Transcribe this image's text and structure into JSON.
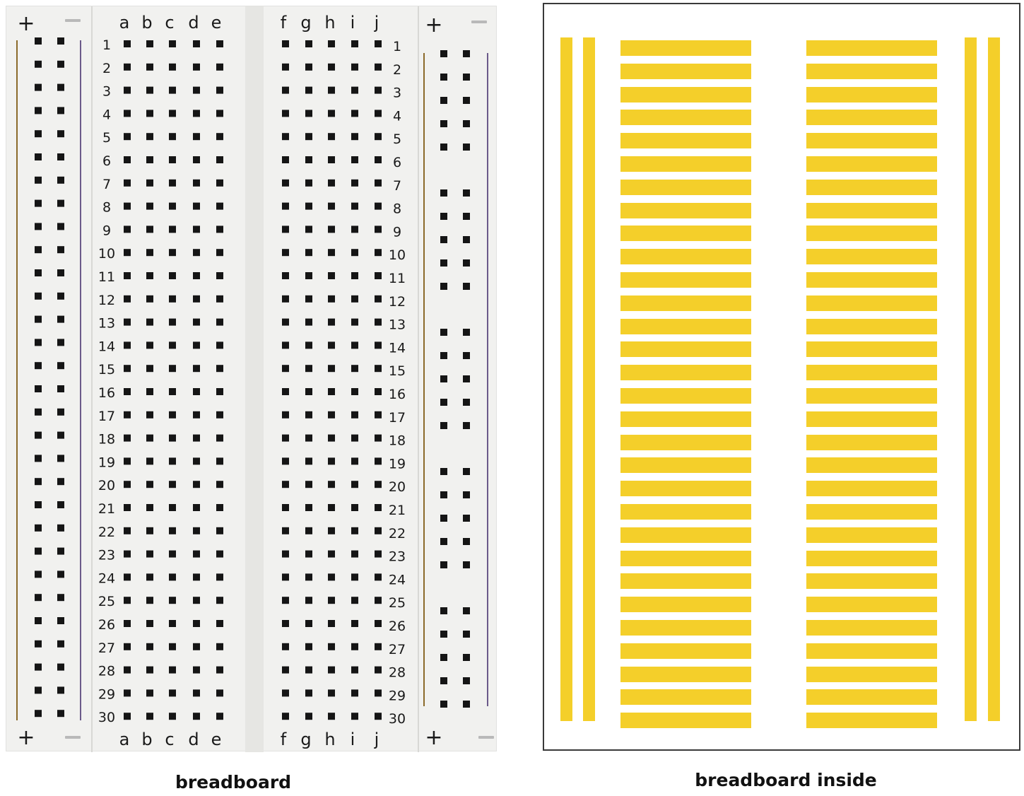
{
  "captions": {
    "breadboard": "breadboard",
    "inside": "breadboard inside"
  },
  "breadboard": {
    "column_labels_left": [
      "a",
      "b",
      "c",
      "d",
      "e"
    ],
    "column_labels_right": [
      "f",
      "g",
      "h",
      "i",
      "j"
    ],
    "row_numbers": [
      "1",
      "2",
      "3",
      "4",
      "5",
      "6",
      "7",
      "8",
      "9",
      "10",
      "11",
      "12",
      "13",
      "14",
      "15",
      "16",
      "17",
      "18",
      "19",
      "20",
      "21",
      "22",
      "23",
      "24",
      "25",
      "26",
      "27",
      "28",
      "29",
      "30"
    ],
    "plus_symbol": "+",
    "minus_symbol": "—"
  },
  "inside": {
    "row_strip_count_per_side": 30,
    "power_rails_per_side": 2
  },
  "colors": {
    "board": "#f1f1ef",
    "hole": "#151515",
    "strip": "#f4cf2a",
    "rail_red": "#8b6a2a",
    "rail_blue": "#6b5a8a"
  }
}
